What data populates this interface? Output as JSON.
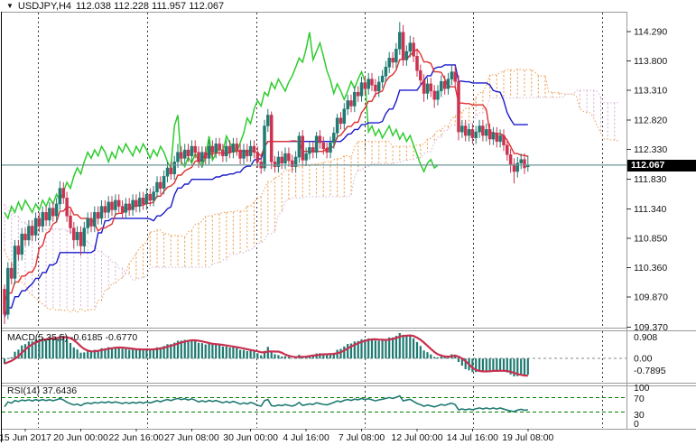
{
  "window": {
    "title_symbol": "USDJPY,H4",
    "title_ohlc": "112.038 112.228 111.957 112.067",
    "current_price": "112.067"
  },
  "colors": {
    "background": "#ffffff",
    "panel_border": "#9a9a9a",
    "grid": "#3a3a3a",
    "candle_up": "#1f7a72",
    "candle_down": "#cc3350",
    "tenkan": "#e03030",
    "kijun": "#1a1acc",
    "chikou": "#2ecc2e",
    "senkou_a": "#eda55f",
    "senkou_b": "#d9b8d9",
    "macd_bar": "#1f7a72",
    "macd_signal": "#c83050",
    "macd_zero": "#888888",
    "rsi_line": "#1f7a72",
    "rsi_level": "#008000",
    "price_line": "#6d9494",
    "tag_bg": "#000000",
    "tag_text": "#ffffff"
  },
  "chart_data": {
    "type": "candlestick",
    "title": "USDJPY,H4",
    "subcharts": [
      "Ichimoku Kinko Hyo",
      "MACD",
      "RSI"
    ],
    "price_axis": {
      "labels": [
        "114.290",
        "113.800",
        "113.310",
        "112.820",
        "112.330",
        "111.830",
        "111.340",
        "110.850",
        "110.360",
        "109.870",
        "109.370"
      ],
      "values": [
        114.29,
        113.8,
        113.31,
        112.82,
        112.33,
        111.83,
        111.34,
        110.85,
        110.36,
        109.87,
        109.37
      ]
    },
    "x_axis": {
      "labels": [
        "15 Jun 2017",
        "20 Jun 00:00",
        "22 Jun 16:00",
        "27 Jun 08:00",
        "30 Jun 00:00",
        "4 Jul 16:00",
        "7 Jul 08:00",
        "12 Jul 00:00",
        "14 Jul 16:00",
        "19 Jul 08:00"
      ],
      "label_bar_index": [
        6,
        22,
        38,
        54,
        71,
        87,
        103,
        119,
        135,
        151
      ]
    },
    "indicators": {
      "ichimoku": {
        "tenkan_sen": 9,
        "kijun_sen": 26,
        "senkou_span_b": 52,
        "shift": 26
      },
      "macd": {
        "label": "MACD(5,35,5) -0.6185 -0.6770",
        "fast_ema": 5,
        "slow_ema": 35,
        "signal_sma": 5,
        "value_main": "-0.6185",
        "value_signal": "-0.6770",
        "scale_labels": {
          "max": "0.908",
          "zero": "0.00",
          "min": "-0.7895"
        }
      },
      "rsi": {
        "label": "RSI(14) 37.6436",
        "period": 14,
        "value": "37.6436",
        "scale_labels": [
          "100",
          "70",
          "30",
          "0"
        ],
        "levels": [
          70,
          30
        ]
      }
    },
    "current_price_line": 112.067,
    "warmup_closes": [
      113.02,
      112.88,
      112.95,
      112.72,
      112.8,
      112.58,
      112.66,
      112.94,
      112.85,
      113.05,
      112.9,
      112.75,
      112.82,
      112.6,
      112.68,
      112.88,
      112.76,
      112.96,
      112.92,
      112.78,
      112.85,
      112.62,
      112.7,
      112.48,
      112.55,
      112.3,
      112.4,
      112.15,
      112.22,
      111.95,
      112.05,
      111.78,
      111.85,
      111.58,
      111.65,
      111.38,
      111.45,
      111.18,
      111.25,
      110.98,
      111.05,
      110.78,
      110.85,
      110.58,
      110.65,
      110.38,
      110.45,
      110.18,
      110.25,
      109.98,
      110.05,
      109.78,
      109.85,
      109.58,
      109.65,
      109.38,
      109.45,
      109.18,
      109.25,
      109.05,
      109.15,
      109.3,
      109.2,
      109.4,
      109.3,
      109.5,
      109.62,
      109.48,
      109.7,
      109.55,
      109.78,
      109.62,
      109.85,
      109.7,
      109.95,
      109.8,
      110.02,
      109.95
    ],
    "candles": [
      [
        110.0,
        110.08,
        109.42,
        109.58
      ],
      [
        109.58,
        110.45,
        109.5,
        110.35
      ],
      [
        110.35,
        110.45,
        110.08,
        110.18
      ],
      [
        110.18,
        110.82,
        110.08,
        110.72
      ],
      [
        110.72,
        110.82,
        110.48,
        110.58
      ],
      [
        110.58,
        111.02,
        110.48,
        110.92
      ],
      [
        110.92,
        111.02,
        110.72,
        110.82
      ],
      [
        110.82,
        111.15,
        110.72,
        111.05
      ],
      [
        111.05,
        111.15,
        110.8,
        110.9
      ],
      [
        110.9,
        111.28,
        110.8,
        111.18
      ],
      [
        111.18,
        111.28,
        110.95,
        111.05
      ],
      [
        111.05,
        111.38,
        110.95,
        111.28
      ],
      [
        111.28,
        111.38,
        111.05,
        111.15
      ],
      [
        111.15,
        111.45,
        111.05,
        111.35
      ],
      [
        111.35,
        111.45,
        111.12,
        111.22
      ],
      [
        111.22,
        111.52,
        111.12,
        111.42
      ],
      [
        111.42,
        111.8,
        111.32,
        111.68
      ],
      [
        111.68,
        111.78,
        111.42,
        111.52
      ],
      [
        111.52,
        111.62,
        111.12,
        111.22
      ],
      [
        111.22,
        111.32,
        110.92,
        111.02
      ],
      [
        111.02,
        111.12,
        110.68,
        110.82
      ],
      [
        110.82,
        111.05,
        110.72,
        110.95
      ],
      [
        110.95,
        111.05,
        110.56,
        110.72
      ],
      [
        110.72,
        111.12,
        110.62,
        111.02
      ],
      [
        111.02,
        111.28,
        110.92,
        111.18
      ],
      [
        111.18,
        111.28,
        110.95,
        111.05
      ],
      [
        111.05,
        111.38,
        110.95,
        111.28
      ],
      [
        111.28,
        111.38,
        111.08,
        111.18
      ],
      [
        111.18,
        111.48,
        111.08,
        111.38
      ],
      [
        111.38,
        111.48,
        111.18,
        111.28
      ],
      [
        111.28,
        111.55,
        111.18,
        111.45
      ],
      [
        111.45,
        111.55,
        111.22,
        111.32
      ],
      [
        111.32,
        111.58,
        111.22,
        111.48
      ],
      [
        111.48,
        111.58,
        111.28,
        111.38
      ],
      [
        111.38,
        111.48,
        111.18,
        111.28
      ],
      [
        111.28,
        111.52,
        111.18,
        111.42
      ],
      [
        111.42,
        111.52,
        111.22,
        111.32
      ],
      [
        111.32,
        111.58,
        111.22,
        111.48
      ],
      [
        111.48,
        111.58,
        111.28,
        111.38
      ],
      [
        111.38,
        111.62,
        111.28,
        111.52
      ],
      [
        111.52,
        111.62,
        111.32,
        111.42
      ],
      [
        111.42,
        111.68,
        111.32,
        111.58
      ],
      [
        111.58,
        111.68,
        111.38,
        111.48
      ],
      [
        111.48,
        111.72,
        111.38,
        111.62
      ],
      [
        111.62,
        111.88,
        111.52,
        111.78
      ],
      [
        111.78,
        111.88,
        111.58,
        111.68
      ],
      [
        111.68,
        111.98,
        111.58,
        111.88
      ],
      [
        111.88,
        112.12,
        111.78,
        112.02
      ],
      [
        112.02,
        112.12,
        111.82,
        111.92
      ],
      [
        111.92,
        112.22,
        111.82,
        112.12
      ],
      [
        112.12,
        112.42,
        112.02,
        112.28
      ],
      [
        112.28,
        112.38,
        112.08,
        112.18
      ],
      [
        112.18,
        112.42,
        112.08,
        112.32
      ],
      [
        112.32,
        112.42,
        112.12,
        112.22
      ],
      [
        112.22,
        112.48,
        112.12,
        112.38
      ],
      [
        112.38,
        112.48,
        112.18,
        112.28
      ],
      [
        112.28,
        112.38,
        112.02,
        112.12
      ],
      [
        112.12,
        112.38,
        112.02,
        112.28
      ],
      [
        112.28,
        112.38,
        112.08,
        112.18
      ],
      [
        112.18,
        112.48,
        112.08,
        112.38
      ],
      [
        112.38,
        112.48,
        112.18,
        112.28
      ],
      [
        112.28,
        112.52,
        112.18,
        112.42
      ],
      [
        112.42,
        112.52,
        112.22,
        112.32
      ],
      [
        112.32,
        112.42,
        112.12,
        112.22
      ],
      [
        112.22,
        112.48,
        112.12,
        112.38
      ],
      [
        112.38,
        112.48,
        112.18,
        112.28
      ],
      [
        112.28,
        112.52,
        112.18,
        112.42
      ],
      [
        112.42,
        112.52,
        112.22,
        112.32
      ],
      [
        112.32,
        112.42,
        112.08,
        112.18
      ],
      [
        112.18,
        112.42,
        112.08,
        112.32
      ],
      [
        112.32,
        112.42,
        112.12,
        112.22
      ],
      [
        112.22,
        112.48,
        112.12,
        112.38
      ],
      [
        112.38,
        112.48,
        112.18,
        112.28
      ],
      [
        112.28,
        112.38,
        112.02,
        112.12
      ],
      [
        112.12,
        112.22,
        111.92,
        112.02
      ],
      [
        112.02,
        112.82,
        111.96,
        112.72
      ],
      [
        112.72,
        113.0,
        112.62,
        112.9
      ],
      [
        112.9,
        112.96,
        112.0,
        112.12
      ],
      [
        112.12,
        112.22,
        111.94,
        112.04
      ],
      [
        112.04,
        112.3,
        111.94,
        112.2
      ],
      [
        112.2,
        112.3,
        112.0,
        112.1
      ],
      [
        112.1,
        112.36,
        112.0,
        112.26
      ],
      [
        112.26,
        112.36,
        112.04,
        112.14
      ],
      [
        112.14,
        112.24,
        111.94,
        112.04
      ],
      [
        112.04,
        112.3,
        111.94,
        112.2
      ],
      [
        112.2,
        112.62,
        112.1,
        112.55
      ],
      [
        112.55,
        112.65,
        112.05,
        112.15
      ],
      [
        112.15,
        112.36,
        112.05,
        112.26
      ],
      [
        112.26,
        112.46,
        112.16,
        112.36
      ],
      [
        112.36,
        112.46,
        112.18,
        112.28
      ],
      [
        112.28,
        112.62,
        112.18,
        112.55
      ],
      [
        112.55,
        112.65,
        112.34,
        112.44
      ],
      [
        112.44,
        112.54,
        112.24,
        112.34
      ],
      [
        112.34,
        112.44,
        112.18,
        112.28
      ],
      [
        112.28,
        112.54,
        112.18,
        112.44
      ],
      [
        112.44,
        112.7,
        112.34,
        112.6
      ],
      [
        112.6,
        112.92,
        112.5,
        112.85
      ],
      [
        112.85,
        112.95,
        112.66,
        112.76
      ],
      [
        112.76,
        113.1,
        112.66,
        113.0
      ],
      [
        113.0,
        113.24,
        112.9,
        113.14
      ],
      [
        113.14,
        113.24,
        112.95,
        113.05
      ],
      [
        113.05,
        113.38,
        112.95,
        113.28
      ],
      [
        113.28,
        113.38,
        113.12,
        113.22
      ],
      [
        113.22,
        113.54,
        113.12,
        113.44
      ],
      [
        113.44,
        113.54,
        113.24,
        113.34
      ],
      [
        113.34,
        113.6,
        113.24,
        113.5
      ],
      [
        113.5,
        113.6,
        113.3,
        113.4
      ],
      [
        113.4,
        113.5,
        113.2,
        113.3
      ],
      [
        113.3,
        113.55,
        113.2,
        113.45
      ],
      [
        113.45,
        113.65,
        113.35,
        113.55
      ],
      [
        113.55,
        113.8,
        113.45,
        113.7
      ],
      [
        113.7,
        113.95,
        113.6,
        113.85
      ],
      [
        113.85,
        113.95,
        113.68,
        113.78
      ],
      [
        113.78,
        114.1,
        113.68,
        114.0
      ],
      [
        114.0,
        114.45,
        113.9,
        114.28
      ],
      [
        114.28,
        114.4,
        113.72,
        113.82
      ],
      [
        113.82,
        114.06,
        113.72,
        113.96
      ],
      [
        113.96,
        114.22,
        113.86,
        114.1
      ],
      [
        114.1,
        114.2,
        113.78,
        113.88
      ],
      [
        113.88,
        113.98,
        113.54,
        113.64
      ],
      [
        113.64,
        113.74,
        113.38,
        113.48
      ],
      [
        113.48,
        113.58,
        113.12,
        113.26
      ],
      [
        113.26,
        113.52,
        113.16,
        113.42
      ],
      [
        113.42,
        113.52,
        113.2,
        113.3
      ],
      [
        113.3,
        113.4,
        113.02,
        113.16
      ],
      [
        113.16,
        113.4,
        113.06,
        113.3
      ],
      [
        113.3,
        113.56,
        113.2,
        113.46
      ],
      [
        113.46,
        113.56,
        113.24,
        113.34
      ],
      [
        113.34,
        113.6,
        113.24,
        113.5
      ],
      [
        113.5,
        113.72,
        113.4,
        113.62
      ],
      [
        113.62,
        113.72,
        113.36,
        113.46
      ],
      [
        113.46,
        113.56,
        112.48,
        112.62
      ],
      [
        112.62,
        112.82,
        112.52,
        112.72
      ],
      [
        112.72,
        112.82,
        112.46,
        112.56
      ],
      [
        112.56,
        112.76,
        112.46,
        112.66
      ],
      [
        112.66,
        112.76,
        112.42,
        112.52
      ],
      [
        112.52,
        112.72,
        112.42,
        112.62
      ],
      [
        112.62,
        112.82,
        112.52,
        112.72
      ],
      [
        112.72,
        112.82,
        112.46,
        112.56
      ],
      [
        112.56,
        112.76,
        112.46,
        112.66
      ],
      [
        112.66,
        112.76,
        112.4,
        112.5
      ],
      [
        112.5,
        112.7,
        112.4,
        112.6
      ],
      [
        112.6,
        112.7,
        112.36,
        112.46
      ],
      [
        112.46,
        112.66,
        112.36,
        112.56
      ],
      [
        112.56,
        112.66,
        112.3,
        112.4
      ],
      [
        112.4,
        112.5,
        112.14,
        112.24
      ],
      [
        112.24,
        112.34,
        111.94,
        112.08
      ],
      [
        112.08,
        112.18,
        111.76,
        111.96
      ],
      [
        111.96,
        112.2,
        111.86,
        112.1
      ],
      [
        112.1,
        112.26,
        112.0,
        112.16
      ],
      [
        112.16,
        112.26,
        111.92,
        112.02
      ],
      [
        112.038,
        112.228,
        111.957,
        112.067
      ]
    ]
  }
}
